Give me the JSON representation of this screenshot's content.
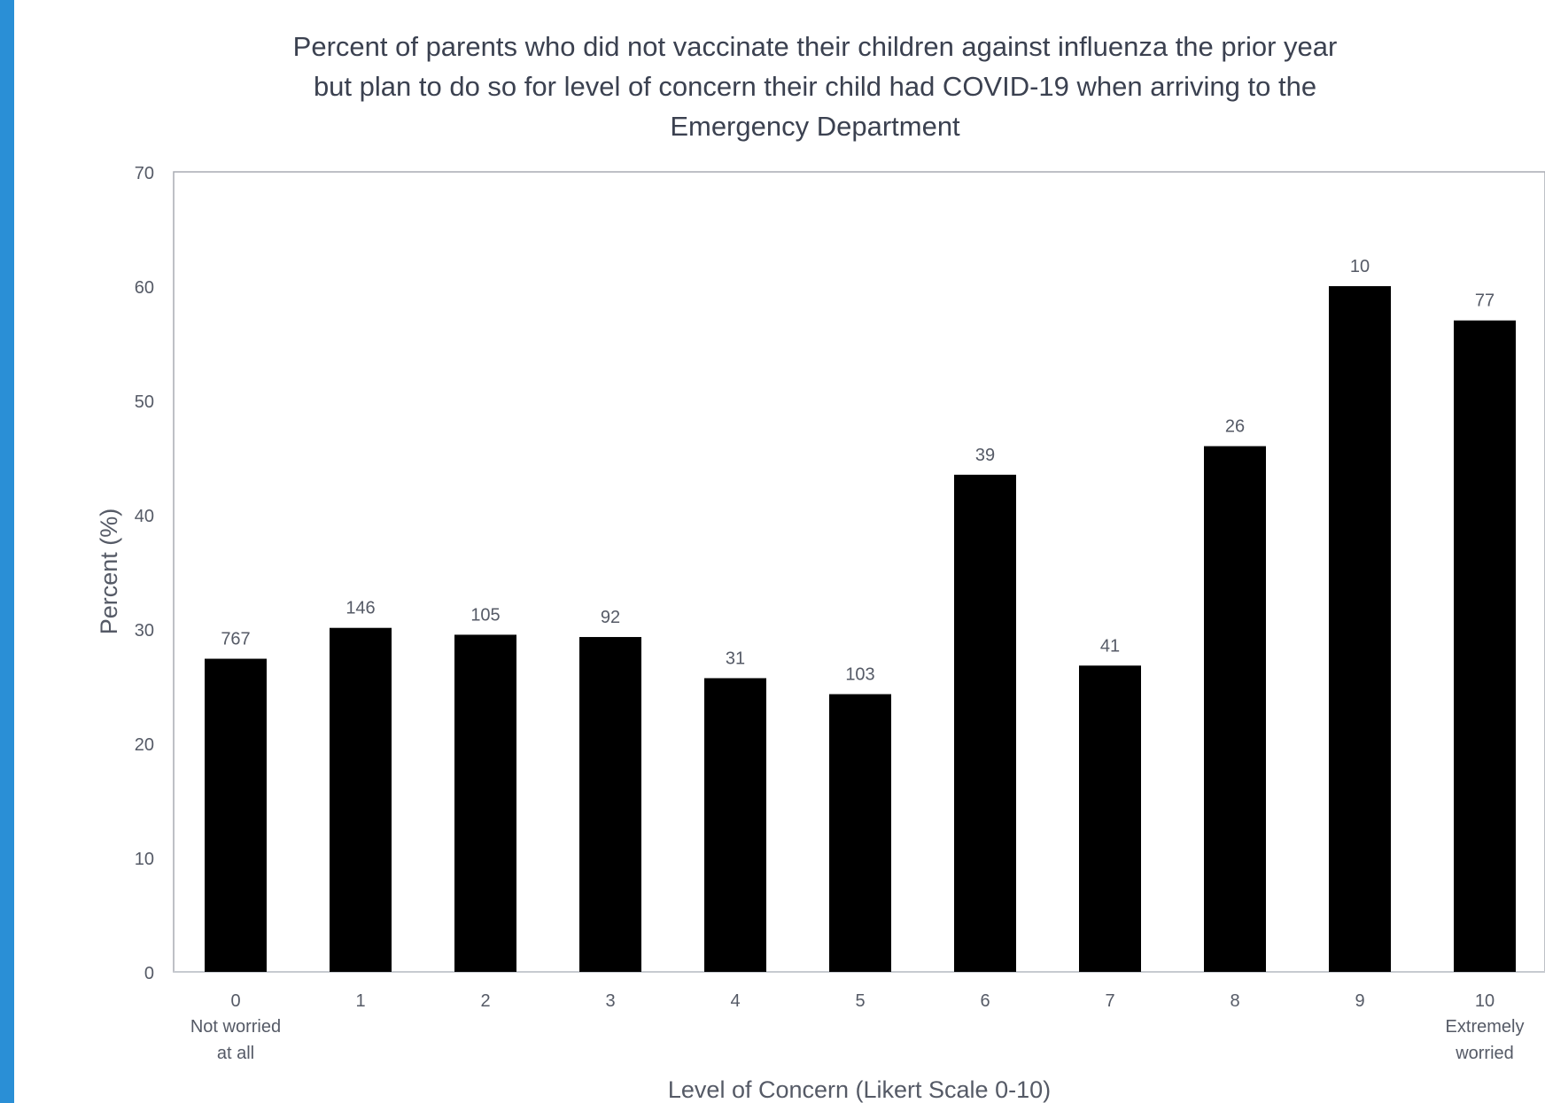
{
  "colors": {
    "accent_strip": "#2a8fd6",
    "bar": "#000000",
    "text": "#3b4150"
  },
  "chart_data": {
    "type": "bar",
    "title_lines": [
      "Percent of parents who did not vaccinate their children against influenza the prior year",
      "but plan to do so for level of concern their child had COVID-19 when arriving to the",
      "Emergency Department"
    ],
    "xlabel": "Level of Concern (Likert Scale 0-10)",
    "ylabel": "Percent (%)",
    "ylim": [
      0,
      70
    ],
    "yticks": [
      0,
      10,
      20,
      30,
      40,
      50,
      60,
      70
    ],
    "grid": false,
    "categories": [
      "0",
      "1",
      "2",
      "3",
      "4",
      "5",
      "6",
      "7",
      "8",
      "9",
      "10"
    ],
    "category_sublabels": [
      [
        "Not worried",
        "at all"
      ],
      [],
      [],
      [],
      [],
      [],
      [],
      [],
      [],
      [],
      [
        "Extremely",
        "worried"
      ]
    ],
    "values": [
      27.4,
      30.1,
      29.5,
      29.3,
      25.7,
      24.3,
      43.5,
      26.8,
      46.0,
      60.0,
      57.0
    ],
    "data_labels": [
      "767",
      "146",
      "105",
      "92",
      "31",
      "103",
      "39",
      "41",
      "26",
      "10",
      "77"
    ]
  }
}
